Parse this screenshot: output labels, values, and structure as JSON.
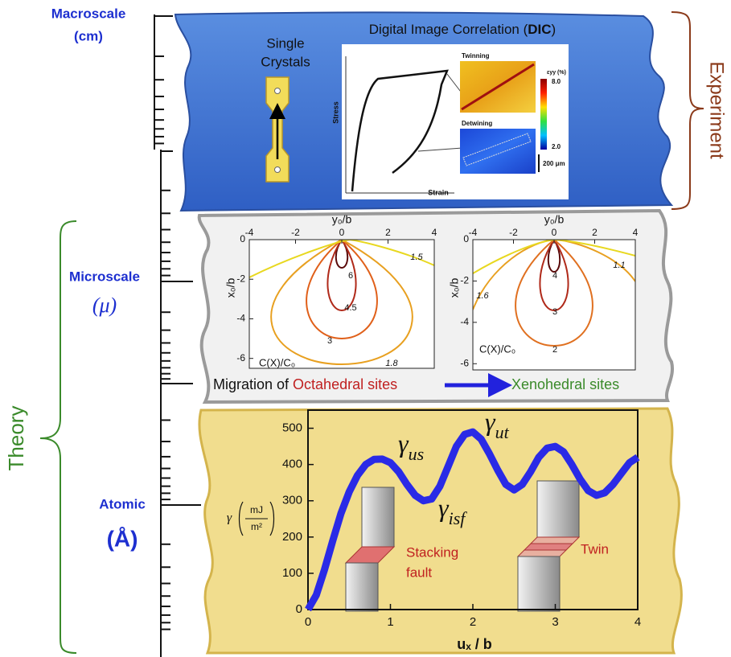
{
  "scale": {
    "macro": {
      "name": "Macroscale",
      "unit": "(cm)"
    },
    "micro": {
      "name": "Microscale",
      "unit": "(μ)"
    },
    "atomic": {
      "name": "Atomic",
      "unit": "(Å)"
    }
  },
  "brackets": {
    "theory": "Theory",
    "experiment": "Experiment"
  },
  "macro_panel": {
    "sample_label": [
      "Single",
      "Crystals"
    ],
    "title": {
      "text": "Digital Image Correlation (",
      "bold": "DIC",
      "close": ")"
    },
    "y_label": "Stress",
    "x_label": "Strain",
    "twinning": "Twinning",
    "detwining": "Detwining",
    "colorbar": {
      "label": "εyy (%)",
      "max": "8.0",
      "min": "2.0"
    },
    "scale_bar": "200 μm"
  },
  "micro_panel": {
    "plots": [
      {
        "x_label": "y₀/b",
        "y_label": "x₀/b",
        "xlim": [
          -4,
          4
        ],
        "ylim": [
          0,
          -6.5
        ],
        "xticks": [
          -4,
          -2,
          0,
          2,
          4
        ],
        "yticks": [
          0,
          -2,
          -4,
          -6
        ],
        "quantity": "C(X)/C₀",
        "contours": [
          6,
          4.5,
          3,
          1.8,
          1.5
        ]
      },
      {
        "x_label": "y₀/b",
        "y_label": "x₀/b",
        "xlim": [
          -4,
          4
        ],
        "ylim": [
          0,
          -6.3
        ],
        "xticks": [
          -4,
          -2,
          0,
          2,
          4
        ],
        "yticks": [
          0,
          -2,
          -4,
          -6
        ],
        "quantity": "C(X)/C₀",
        "contours": [
          4,
          3,
          2,
          1.6,
          1.1
        ]
      }
    ],
    "caption": {
      "start": "Migration of ",
      "from": "Octahedral sites",
      "to": "Xenohedral sites"
    }
  },
  "atomic_panel": {
    "y_label": {
      "symbol": "γ",
      "num": "mJ",
      "den": "m²"
    },
    "x_label": "uₓ / b",
    "xlim": [
      0,
      4
    ],
    "ylim": [
      0,
      550
    ],
    "xticks": [
      0,
      1,
      2,
      3,
      4
    ],
    "yticks": [
      0,
      100,
      200,
      300,
      400,
      500
    ],
    "annotations": [
      {
        "symbol": "γ",
        "sub": "us"
      },
      {
        "symbol": "γ",
        "sub": "ut"
      },
      {
        "symbol": "γ",
        "sub": "isf"
      }
    ],
    "stacking_fault": [
      "Stacking",
      "fault"
    ],
    "twin": "Twin",
    "curve": {
      "x": [
        0,
        0.1,
        0.2,
        0.3,
        0.4,
        0.5,
        0.6,
        0.7,
        0.8,
        0.9,
        1.0,
        1.1,
        1.2,
        1.3,
        1.4,
        1.5,
        1.6,
        1.7,
        1.8,
        1.9,
        2.0,
        2.1,
        2.2,
        2.3,
        2.4,
        2.5,
        2.6,
        2.7,
        2.8,
        2.9,
        3.0,
        3.1,
        3.2,
        3.3,
        3.4,
        3.5,
        3.6,
        3.7,
        3.8,
        3.9,
        4.0
      ],
      "y": [
        0,
        40,
        110,
        190,
        265,
        325,
        370,
        400,
        414,
        415,
        405,
        380,
        345,
        315,
        300,
        305,
        340,
        395,
        450,
        483,
        490,
        470,
        430,
        385,
        345,
        330,
        345,
        380,
        420,
        445,
        450,
        435,
        400,
        360,
        328,
        315,
        322,
        345,
        375,
        405,
        420
      ]
    }
  }
}
